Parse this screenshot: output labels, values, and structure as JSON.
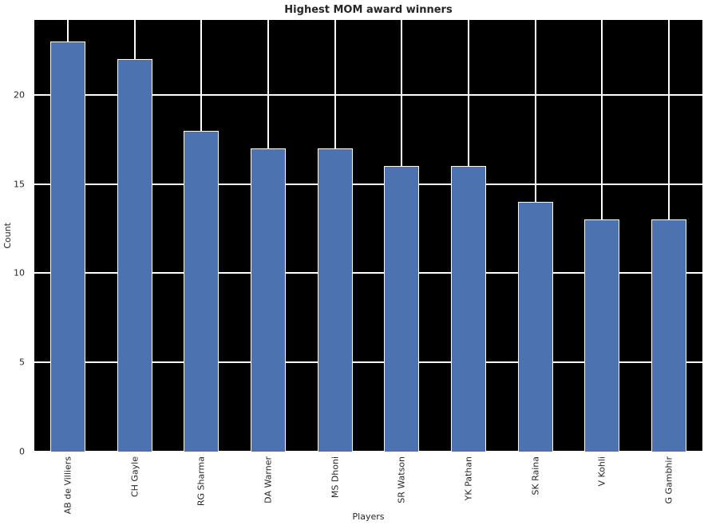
{
  "figure": {
    "background": "#ffffff",
    "plot_background": "#000000",
    "grid_color": "#ffffff",
    "bar_color": "#4c72b0",
    "bar_edge_color": "#ffffff",
    "text_color": "#262626"
  },
  "chart_data": {
    "type": "bar",
    "title": "Highest MOM award winners",
    "xlabel": "Players",
    "ylabel": "Count",
    "categories": [
      "AB de Villiers",
      "CH Gayle",
      "RG Sharma",
      "DA Warner",
      "MS Dhoni",
      "SR Watson",
      "YK Pathan",
      "SK Raina",
      "V Kohli",
      "G Gambhir"
    ],
    "values": [
      23,
      22,
      18,
      17,
      17,
      16,
      16,
      14,
      13,
      13
    ],
    "yticks": [
      0,
      5,
      10,
      15,
      20
    ],
    "ylim": [
      0,
      24.2
    ],
    "grid": true,
    "grid_orientation": "both",
    "legend": false,
    "bar_width_ratio": 0.53
  }
}
